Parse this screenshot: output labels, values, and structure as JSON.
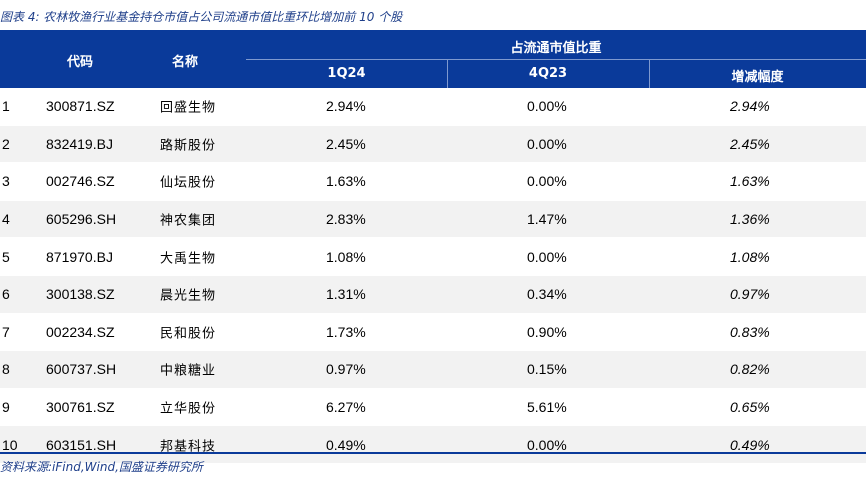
{
  "title": "图表 4:  农林牧渔行业基金持仓市值占公司流通市值比重环比增加前 10 个股",
  "header": {
    "code": "代码",
    "name": "名称",
    "group": "占流通市值比重",
    "q1": "1Q24",
    "q4": "4Q23",
    "change": "增减幅度"
  },
  "rows": [
    {
      "idx": "1",
      "code": "300871.SZ",
      "name": "回盛生物",
      "q1": "2.94%",
      "q4": "0.00%",
      "change": "2.94%"
    },
    {
      "idx": "2",
      "code": "832419.BJ",
      "name": "路斯股份",
      "q1": "2.45%",
      "q4": "0.00%",
      "change": "2.45%"
    },
    {
      "idx": "3",
      "code": "002746.SZ",
      "name": "仙坛股份",
      "q1": "1.63%",
      "q4": "0.00%",
      "change": "1.63%"
    },
    {
      "idx": "4",
      "code": "605296.SH",
      "name": "神农集团",
      "q1": "2.83%",
      "q4": "1.47%",
      "change": "1.36%"
    },
    {
      "idx": "5",
      "code": "871970.BJ",
      "name": "大禹生物",
      "q1": "1.08%",
      "q4": "0.00%",
      "change": "1.08%"
    },
    {
      "idx": "6",
      "code": "300138.SZ",
      "name": "晨光生物",
      "q1": "1.31%",
      "q4": "0.34%",
      "change": "0.97%"
    },
    {
      "idx": "7",
      "code": "002234.SZ",
      "name": "民和股份",
      "q1": "1.73%",
      "q4": "0.90%",
      "change": "0.83%"
    },
    {
      "idx": "8",
      "code": "600737.SH",
      "name": "中粮糖业",
      "q1": "0.97%",
      "q4": "0.15%",
      "change": "0.82%"
    },
    {
      "idx": "9",
      "code": "300761.SZ",
      "name": "立华股份",
      "q1": "6.27%",
      "q4": "5.61%",
      "change": "0.65%"
    },
    {
      "idx": "10",
      "code": "603151.SH",
      "name": "邦基科技",
      "q1": "0.49%",
      "q4": "0.00%",
      "change": "0.49%"
    }
  ],
  "source": "资料来源:iFind,Wind,国盛证券研究所",
  "colors": {
    "header_bg": "#0a3a9a",
    "alt_row": "#f2f2f2",
    "title_text": "#1f3f8a"
  }
}
